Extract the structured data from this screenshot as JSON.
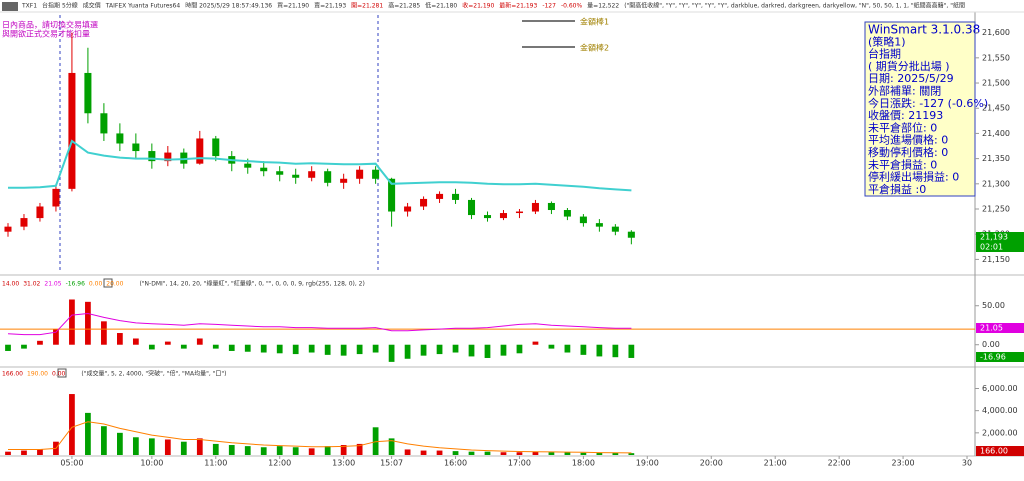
{
  "toolbar": [
    {
      "text": "TXF1",
      "color": "#333"
    },
    {
      "text": "台指期 5分線",
      "color": "#333"
    },
    {
      "text": "成交價",
      "color": "#333"
    },
    {
      "text": "TAIFEX Yuanta Futures64",
      "color": "#333"
    },
    {
      "text": "時間 2025/5/29 18:57:49.136",
      "color": "#333"
    },
    {
      "text": "買=21,190",
      "color": "#333"
    },
    {
      "text": "賣=21,193",
      "color": "#333"
    },
    {
      "text": "開=21,281",
      "color": "#d00000"
    },
    {
      "text": "高=21,285",
      "color": "#333"
    },
    {
      "text": "低=21,180",
      "color": "#333"
    },
    {
      "text": "收=21,190",
      "color": "#d00000"
    },
    {
      "text": "最新=21,193",
      "color": "#d00000"
    },
    {
      "text": "-127",
      "color": "#d00000"
    },
    {
      "text": "-0.60%",
      "color": "#d00000"
    },
    {
      "text": "量=12,522",
      "color": "#333"
    },
    {
      "text": "(\"開高低收線\", \"Y\", \"Y\", \"Y\", \"Y\", \"Y\", darkblue, darkred, darkgreen, darkyellow, \"N\", 50, 50, 1, 1, \"紙間高高籍\", \"紙間",
      "color": "#333"
    }
  ],
  "notice": [
    "日內商品，請切換交易填選",
    "與開欲正式交易才能扣量"
  ],
  "bar_legend": [
    "金額棒1",
    "金額棒2"
  ],
  "info_box": [
    "WinSmart 3.1.0.38",
    "(策略1)",
    "台指期",
    "( 期貨分批出場 )",
    "日期: 2025/5/29",
    "外部補單: 關閉",
    "今日漲跌: -127 (-0.6%)",
    "收盤價: 21193",
    "未平倉部位: 0",
    "平均進場價格: 0",
    "移動停利價格: 0",
    "未平倉損益: 0",
    "停利緩出場損益: 0",
    "平倉損益 :0"
  ],
  "chart_data": [
    {
      "type": "candlestick",
      "up_color": "#e00000",
      "down_color": "#00a000",
      "open": [
        21205,
        21215,
        21232,
        21255,
        21290,
        21520,
        21440,
        21400,
        21380,
        21365,
        21345,
        21362,
        21340,
        21390,
        21355,
        21340,
        21332,
        21325,
        21318,
        21312,
        21325,
        21302,
        21310,
        21328,
        21310,
        21245,
        21255,
        21270,
        21280,
        21268,
        21238,
        21232,
        21242,
        21245,
        21262,
        21248,
        21235,
        21222,
        21215,
        21205,
        null,
        null,
        null,
        null,
        null,
        null,
        null,
        null,
        null,
        null,
        null,
        null,
        null,
        null,
        null,
        null,
        null,
        null,
        null,
        null,
        null
      ],
      "high": [
        21222,
        21240,
        21262,
        21300,
        21600,
        21570,
        21460,
        21420,
        21400,
        21380,
        21375,
        21370,
        21405,
        21395,
        21365,
        21350,
        21345,
        21335,
        21330,
        21335,
        21330,
        21320,
        21335,
        21335,
        21312,
        21262,
        21275,
        21285,
        21290,
        21272,
        21245,
        21248,
        21250,
        21268,
        21265,
        21252,
        21240,
        21230,
        21220,
        21208,
        null,
        null,
        null,
        null,
        null,
        null,
        null,
        null,
        null,
        null,
        null,
        null,
        null,
        null,
        null,
        null,
        null,
        null,
        null,
        null,
        null
      ],
      "low": [
        21195,
        21208,
        21225,
        21245,
        21285,
        21420,
        21385,
        21365,
        21350,
        21330,
        21335,
        21330,
        21338,
        21345,
        21325,
        21320,
        21315,
        21305,
        21300,
        21305,
        21295,
        21290,
        21300,
        21300,
        21215,
        21235,
        21248,
        21262,
        21260,
        21230,
        21225,
        21228,
        21232,
        21240,
        21240,
        21228,
        21215,
        21205,
        21198,
        21180,
        null,
        null,
        null,
        null,
        null,
        null,
        null,
        null,
        null,
        null,
        null,
        null,
        null,
        null,
        null,
        null,
        null,
        null,
        null,
        null,
        null
      ],
      "close": [
        21215,
        21232,
        21255,
        21290,
        21520,
        21440,
        21400,
        21380,
        21365,
        21345,
        21362,
        21340,
        21390,
        21355,
        21340,
        21332,
        21325,
        21318,
        21312,
        21325,
        21302,
        21310,
        21328,
        21310,
        21245,
        21255,
        21270,
        21280,
        21268,
        21238,
        21232,
        21242,
        21245,
        21262,
        21248,
        21235,
        21222,
        21215,
        21205,
        21193,
        null,
        null,
        null,
        null,
        null,
        null,
        null,
        null,
        null,
        null,
        null,
        null,
        null,
        null,
        null,
        null,
        null,
        null,
        null,
        null,
        null
      ],
      "ma": {
        "color": "#40d0d0",
        "values": [
          21292,
          21292,
          21293,
          21296,
          21385,
          21362,
          21356,
          21352,
          21350,
          21350,
          21348,
          21349,
          21351,
          21350,
          21347,
          21345,
          21343,
          21342,
          21340,
          21341,
          21340,
          21339,
          21339,
          21340,
          21300,
          21301,
          21302,
          21303,
          21303,
          21302,
          21300,
          21299,
          21299,
          21300,
          21298,
          21296,
          21294,
          21291,
          21289,
          21287,
          null,
          null,
          null,
          null,
          null,
          null,
          null,
          null,
          null,
          null,
          null,
          null,
          null,
          null,
          null,
          null,
          null,
          null,
          null,
          null,
          null
        ]
      },
      "ylim": [
        21125,
        21635
      ],
      "yticks": [
        {
          "value": 21150,
          "label": "21,150"
        },
        {
          "value": 21200,
          "label": "21,200"
        },
        {
          "value": 21250,
          "label": "21,250"
        },
        {
          "value": 21300,
          "label": "21,300"
        },
        {
          "value": 21350,
          "label": "21,350"
        },
        {
          "value": 21400,
          "label": "21,400"
        },
        {
          "value": 21450,
          "label": "21,450"
        },
        {
          "value": 21500,
          "label": "21,500"
        },
        {
          "value": 21550,
          "label": "21,550"
        },
        {
          "value": 21600,
          "label": "21,600"
        }
      ],
      "last_label": "21,193",
      "countdown": "02:01"
    },
    {
      "type": "bar",
      "header_values": [
        {
          "text": "14.00",
          "color": "#d00000"
        },
        {
          "text": "31.02",
          "color": "#d00000"
        },
        {
          "text": "21.05",
          "color": "#e000e0"
        },
        {
          "text": "-16.96",
          "color": "#00a000"
        },
        {
          "text": "0.00",
          "color": "#ff8000"
        },
        {
          "text": "20.00",
          "color": "#ff8000"
        }
      ],
      "params": "(\"N-DMI\", 14, 20, 20, \"綠量紅\", \"紅量綠\", 0, \"\", 0, 0, 0, 9, rgb(255, 128, 0), 2)",
      "values": [
        -8,
        -5,
        5,
        20,
        58,
        55,
        30,
        15,
        8,
        -6,
        4,
        -5,
        8,
        -5,
        -8,
        -9,
        -10,
        -11,
        -12,
        -10,
        -13,
        -14,
        -12,
        -10,
        -22,
        -18,
        -14,
        -12,
        -10,
        -15,
        -17,
        -14,
        -11,
        4,
        -5,
        -10,
        -13,
        -15,
        -16,
        -16.96,
        null,
        null,
        null,
        null,
        null,
        null,
        null,
        null,
        null,
        null,
        null,
        null,
        null,
        null,
        null,
        null,
        null,
        null,
        null,
        null,
        null
      ],
      "up_color": "#e00000",
      "down_color": "#00a000",
      "line": {
        "color": "#e000e0",
        "values": [
          14,
          13,
          13,
          16,
          38,
          40,
          35,
          31,
          28,
          27,
          26,
          25,
          27,
          26,
          25,
          24,
          23,
          23,
          22,
          22,
          21,
          21,
          21,
          22,
          18,
          18,
          19,
          20,
          21,
          21,
          22,
          24,
          26,
          27,
          25,
          24,
          23,
          22,
          21,
          21.05,
          null,
          null,
          null,
          null,
          null,
          null,
          null,
          null,
          null,
          null,
          null,
          null,
          null,
          null,
          null,
          null,
          null,
          null,
          null,
          null,
          null
        ]
      },
      "reference_line": {
        "value": 20,
        "color": "#ff8000"
      },
      "ylim": [
        -26,
        83
      ],
      "yticks": [
        {
          "value": 0,
          "label": "0.00"
        },
        {
          "value": 50,
          "label": "50.00"
        }
      ],
      "right_labels": [
        {
          "text": "21.05",
          "color": "#e000e0"
        },
        {
          "text": "-16.96",
          "color": "#00a000"
        }
      ]
    },
    {
      "type": "bar",
      "header_values": [
        {
          "text": "166.00",
          "color": "#d00000"
        },
        {
          "text": "190.00",
          "color": "#ff8000"
        },
        {
          "text": "0.00",
          "color": "#d00000"
        }
      ],
      "params": "(\"成交量\", 5, 2, 4000, \"突破\", \"倍\", \"MA均量\", \"口\")",
      "categories": [
        null,
        null,
        null,
        null,
        "05:00",
        null,
        null,
        null,
        null,
        "10:00",
        null,
        null,
        null,
        "11:00",
        null,
        null,
        null,
        "12:00",
        null,
        null,
        null,
        "13:00",
        null,
        null,
        "15:07",
        null,
        null,
        null,
        "16:00",
        null,
        null,
        null,
        "17:00",
        null,
        null,
        null,
        "18:00",
        null,
        null,
        null,
        "19:00",
        null,
        null,
        null,
        "20:00",
        null,
        null,
        null,
        "21:00",
        null,
        null,
        null,
        "22:00",
        null,
        null,
        null,
        "23:00",
        null,
        null,
        null,
        "30"
      ],
      "values": [
        300,
        400,
        500,
        1200,
        5500,
        3800,
        2600,
        2000,
        1600,
        1500,
        1400,
        1200,
        1500,
        1000,
        900,
        800,
        700,
        800,
        700,
        600,
        800,
        900,
        1000,
        2500,
        1500,
        500,
        400,
        400,
        350,
        300,
        300,
        250,
        250,
        300,
        250,
        250,
        200,
        200,
        180,
        166,
        null,
        null,
        null,
        null,
        null,
        null,
        null,
        null,
        null,
        null,
        null,
        null,
        null,
        null,
        null,
        null,
        null,
        null,
        null,
        null,
        null
      ],
      "line": {
        "color": "#ff8000",
        "values": [
          500,
          500,
          500,
          600,
          2500,
          3000,
          2800,
          2400,
          2100,
          1800,
          1600,
          1400,
          1400,
          1250,
          1100,
          1000,
          900,
          850,
          800,
          750,
          750,
          780,
          850,
          1200,
          1300,
          1000,
          800,
          650,
          550,
          450,
          400,
          350,
          320,
          300,
          280,
          260,
          240,
          220,
          200,
          190,
          null,
          null,
          null,
          null,
          null,
          null,
          null,
          null,
          null,
          null,
          null,
          null,
          null,
          null,
          null,
          null,
          null,
          null,
          null,
          null,
          null
        ]
      },
      "ylim": [
        0,
        7670
      ],
      "yticks": [
        {
          "value": 2000,
          "label": "2,000.00"
        },
        {
          "value": 4000,
          "label": "4,000.00"
        },
        {
          "value": 6000,
          "label": "6,000.00"
        }
      ],
      "right_labels": [
        {
          "text": "166.00",
          "color": "#d00000"
        }
      ]
    }
  ]
}
